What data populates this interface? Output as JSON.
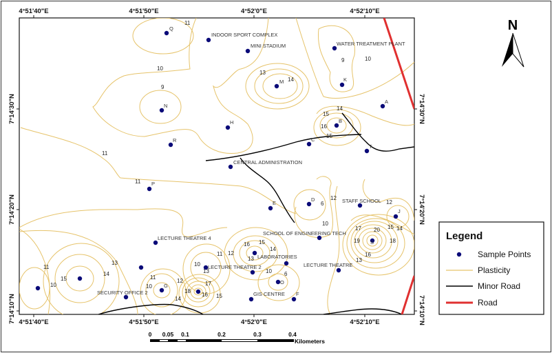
{
  "map": {
    "top_ticks": [
      "4°51'40\"E",
      "4°51'50\"E",
      "4°52'0\"E",
      "4°52'10\"E"
    ],
    "bottom_ticks": [
      "4°51'40\"E",
      "4°51'50\"E",
      "4°52'0\"E",
      "4°52'10\"E"
    ],
    "left_ticks": [
      "7°14'30\"N",
      "7°14'20\"N",
      "7°14'10\"N"
    ],
    "right_ticks": [
      "7°14'30\"N",
      "7°14'20\"N",
      "7°14'10\"N"
    ],
    "points": [
      "Q",
      "INDOOR SPORT COMPLEX",
      "MINI STADIUM",
      "M",
      "WATER TREATMENT PLANT",
      "K",
      "A",
      "N",
      "H",
      "R",
      "B",
      "C",
      "T",
      "CENTRAL ADMINISTRATION",
      "P",
      "E",
      "D",
      "STAFF SCHOOL",
      "J",
      "SCHOOL OF ENGINEERING TECH",
      "LECTURE THEATRE 4",
      "LABORATORIES",
      "LECTURE THEATRE 2",
      "SECURITY OFFICE 2",
      "G",
      "O",
      "GIS CENTRE",
      "F",
      "LECTURE THEATRE",
      "S"
    ],
    "contour_labels": [
      "11",
      "10",
      "9",
      "11",
      "13",
      "14",
      "9",
      "10",
      "14",
      "15",
      "16",
      "15",
      "11",
      "12",
      "6",
      "10",
      "12",
      "17",
      "20",
      "19",
      "18",
      "16",
      "13",
      "15",
      "14",
      "12",
      "11",
      "10",
      "15",
      "14",
      "13",
      "10",
      "11",
      "12",
      "14",
      "18",
      "17",
      "16",
      "15",
      "16",
      "15",
      "14",
      "13",
      "11",
      "10",
      "10",
      "6",
      "13"
    ]
  },
  "north_arrow": {
    "label": "N"
  },
  "legend": {
    "title": "Legend",
    "items": [
      "Sample Points",
      "Plasticity",
      "Minor Road",
      "Road"
    ],
    "colors": {
      "points": "#0a0a78",
      "plasticity": "#e6c36a",
      "minor_road": "#000000",
      "road": "#e03030"
    }
  },
  "scale_bar": {
    "labels": [
      "0",
      "0.05",
      "0.1",
      "0.2",
      "0.3",
      "0.4"
    ],
    "unit": "Kilometers"
  }
}
